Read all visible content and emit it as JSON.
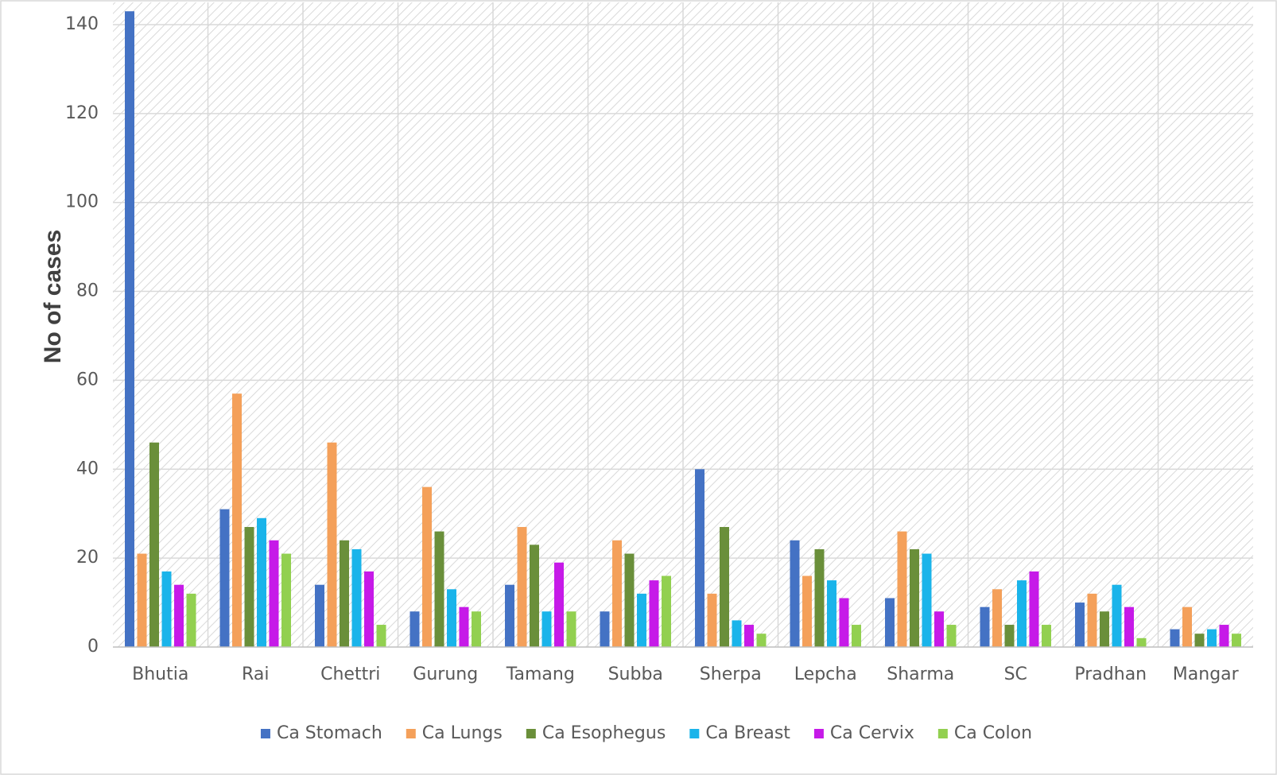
{
  "chart_data": {
    "type": "bar",
    "title": "",
    "xlabel": "",
    "ylabel": "No of cases",
    "ylim": [
      0,
      145
    ],
    "yticks": [
      0,
      20,
      40,
      60,
      80,
      100,
      120,
      140
    ],
    "grid": true,
    "legend_position": "bottom",
    "categories": [
      "Bhutia",
      "Rai",
      "Chettri",
      "Gurung",
      "Tamang",
      "Subba",
      "Sherpa",
      "Lepcha",
      "Sharma",
      "SC",
      "Pradhan",
      "Mangar"
    ],
    "series": [
      {
        "name": "Ca Stomach",
        "color": "#4472c4",
        "values": [
          143,
          31,
          14,
          8,
          14,
          8,
          40,
          24,
          11,
          9,
          10,
          4
        ]
      },
      {
        "name": "Ca Lungs",
        "color": "#f4a05a",
        "values": [
          21,
          57,
          46,
          36,
          27,
          24,
          12,
          16,
          26,
          13,
          12,
          9
        ]
      },
      {
        "name": "Ca Esophegus",
        "color": "#6a8f3a",
        "values": [
          46,
          27,
          24,
          26,
          23,
          21,
          27,
          22,
          22,
          5,
          8,
          3
        ]
      },
      {
        "name": "Ca Breast",
        "color": "#1ab4ea",
        "values": [
          17,
          29,
          22,
          13,
          8,
          12,
          6,
          15,
          21,
          15,
          14,
          4
        ]
      },
      {
        "name": "Ca Cervix",
        "color": "#c61ae8",
        "values": [
          14,
          24,
          17,
          9,
          19,
          15,
          5,
          11,
          8,
          17,
          9,
          5
        ]
      },
      {
        "name": "Ca Colon",
        "color": "#92d050",
        "values": [
          12,
          21,
          5,
          8,
          8,
          16,
          3,
          5,
          5,
          5,
          2,
          3
        ]
      }
    ]
  }
}
